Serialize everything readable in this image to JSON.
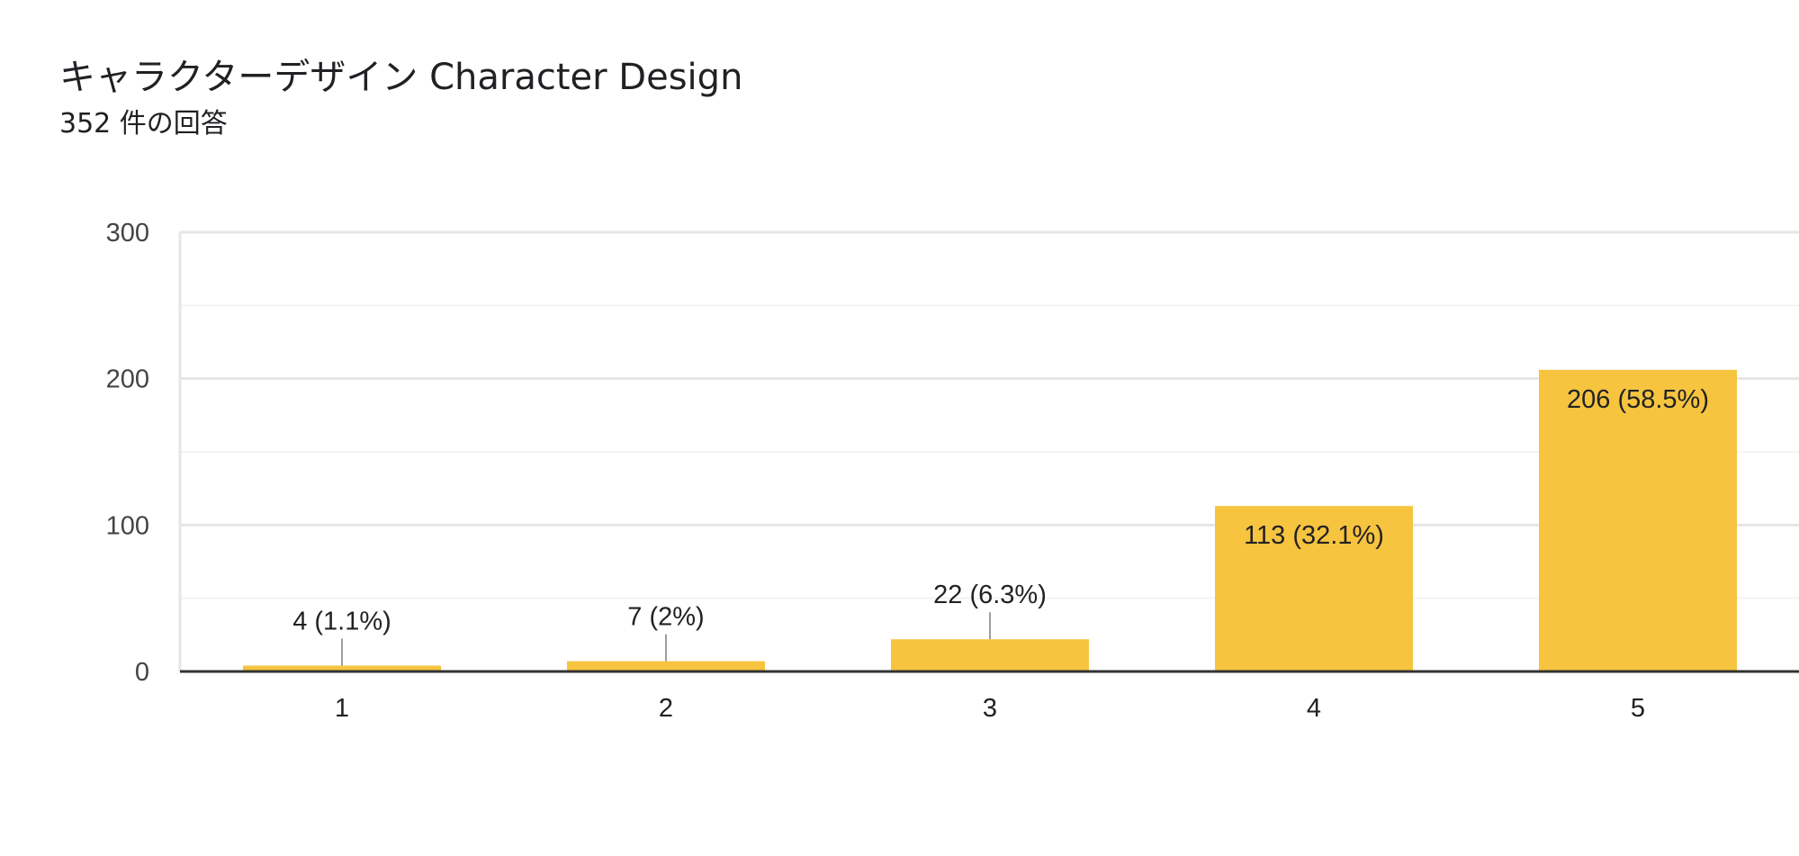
{
  "chart_data": {
    "type": "bar",
    "title": "キャラクターデザイン Character Design",
    "subtitle": "352 件の回答",
    "categories": [
      "1",
      "2",
      "3",
      "4",
      "5"
    ],
    "values": [
      4,
      7,
      22,
      113,
      206
    ],
    "data_labels": [
      "4 (1.1%)",
      "7 (2%)",
      "22 (6.3%)",
      "113 (32.1%)",
      "206 (58.5%)"
    ],
    "ylim": [
      0,
      300
    ],
    "yticks": [
      0,
      100,
      200,
      300
    ],
    "grid": true,
    "legend": "none",
    "colors": {
      "bar": "#F6C43F",
      "axis": "#333333",
      "grid_major": "#E6E6E6",
      "grid_minor": "#F3F3F3",
      "leader": "#9E9E9E"
    }
  }
}
